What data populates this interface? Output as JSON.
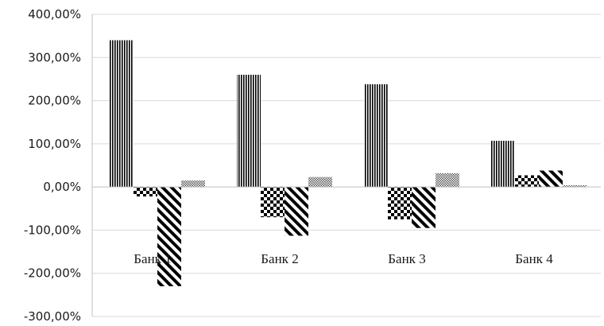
{
  "chart_data": {
    "type": "bar",
    "title": "",
    "xlabel": "",
    "ylabel": "",
    "categories": [
      "Банк 1",
      "Банк 2",
      "Банк 3",
      "Банк 4"
    ],
    "series": [
      {
        "pattern": "vertical-stripes",
        "values": [
          340,
          260,
          238,
          107
        ]
      },
      {
        "pattern": "checkerboard",
        "values": [
          -22,
          -70,
          -75,
          27
        ]
      },
      {
        "pattern": "diagonal-stripes",
        "values": [
          -230,
          -113,
          -95,
          38
        ]
      },
      {
        "pattern": "fine-dots",
        "values": [
          15,
          23,
          32,
          4
        ]
      }
    ],
    "ylim": [
      -300,
      400
    ],
    "yticks": [
      400,
      300,
      200,
      100,
      0,
      -100,
      -200,
      -300
    ],
    "ytick_labels": [
      "400,00%",
      "300,00%",
      "200,00%",
      "100,00%",
      "0,00%",
      "-100,00%",
      "-200,00%",
      "-300,00%"
    ],
    "grid": true,
    "legend": "none",
    "colors": {
      "grid": "#d9d9d9",
      "axis": "#bfbfbf",
      "ink": "#000000"
    }
  }
}
